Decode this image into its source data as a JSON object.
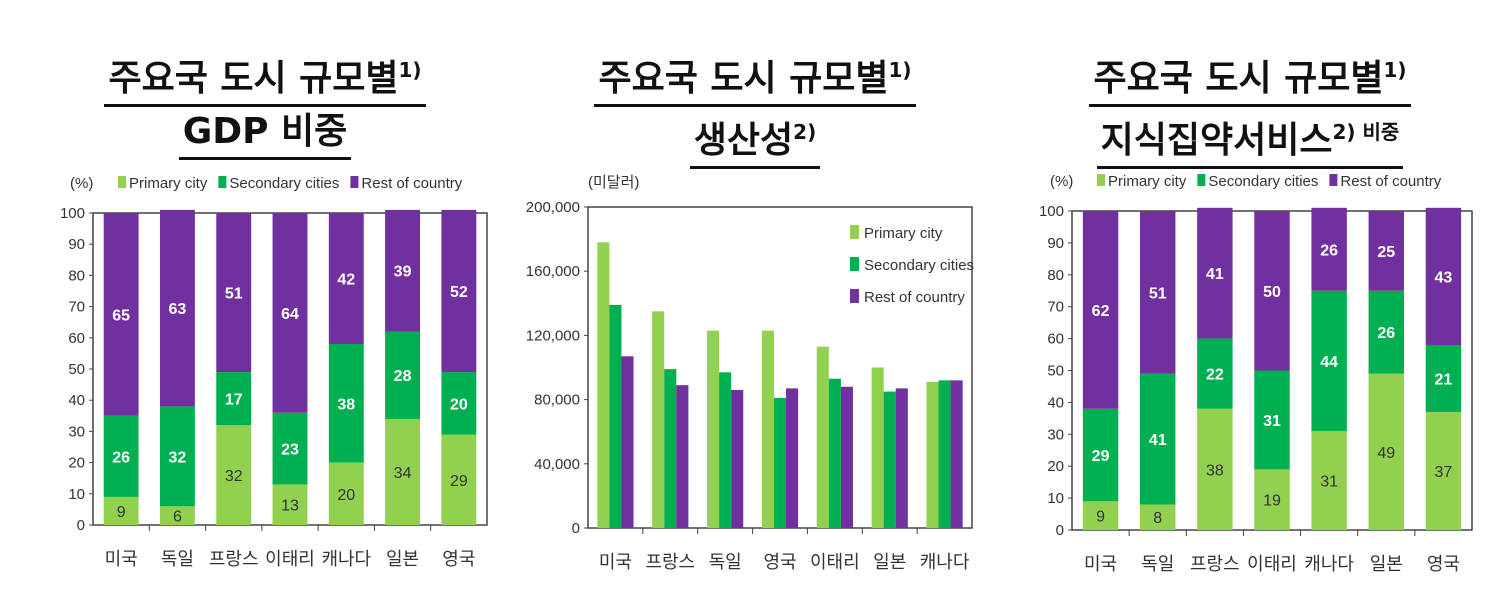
{
  "colors": {
    "primary": "#92d050",
    "secondary": "#00b050",
    "rest": "#7030a0"
  },
  "chart_data": [
    {
      "type": "bar",
      "stacked": true,
      "title_line1": "주요국 도시 규모별",
      "title_line1_sup": "1)",
      "title_line2": "GDP 비중",
      "title_line2_sup": "",
      "ylabel": "(%)",
      "ylim": [
        0,
        100
      ],
      "yticks": [
        0,
        10,
        20,
        30,
        40,
        50,
        60,
        70,
        80,
        90,
        100
      ],
      "legend": "top",
      "categories": [
        "미국",
        "독일",
        "프랑스",
        "이태리",
        "캐나다",
        "일본",
        "영국"
      ],
      "series": [
        {
          "name": "Primary city",
          "values": [
            9,
            6,
            32,
            13,
            20,
            34,
            29
          ]
        },
        {
          "name": "Secondary cities",
          "values": [
            26,
            32,
            17,
            23,
            38,
            28,
            20
          ]
        },
        {
          "name": "Rest of country",
          "values": [
            65,
            63,
            51,
            64,
            42,
            39,
            52
          ]
        }
      ]
    },
    {
      "type": "bar",
      "stacked": false,
      "title_line1": "주요국 도시 규모별",
      "title_line1_sup": "1)",
      "title_line2": "생산성",
      "title_line2_sup": "2)",
      "ylabel": "(미달러)",
      "ylim": [
        0,
        200000
      ],
      "yticks": [
        0,
        40000,
        80000,
        120000,
        160000,
        200000
      ],
      "legend": "top-right",
      "categories": [
        "미국",
        "프랑스",
        "독일",
        "영국",
        "이태리",
        "일본",
        "캐나다"
      ],
      "series": [
        {
          "name": "Primary city",
          "values": [
            178000,
            135000,
            123000,
            123000,
            113000,
            100000,
            91000
          ]
        },
        {
          "name": "Secondary cities",
          "values": [
            139000,
            99000,
            97000,
            81000,
            93000,
            85000,
            92000
          ]
        },
        {
          "name": "Rest of country",
          "values": [
            107000,
            89000,
            86000,
            87000,
            88000,
            87000,
            92000
          ]
        }
      ]
    },
    {
      "type": "bar",
      "stacked": true,
      "title_line1": "주요국 도시 규모별",
      "title_line1_sup": "1)",
      "title_line2": "지식집약서비스",
      "title_line2_sup": "2) 비중",
      "ylabel": "(%)",
      "ylim": [
        0,
        100
      ],
      "yticks": [
        0,
        10,
        20,
        30,
        40,
        50,
        60,
        70,
        80,
        90,
        100
      ],
      "legend": "top",
      "categories": [
        "미국",
        "독일",
        "프랑스",
        "이태리",
        "캐나다",
        "일본",
        "영국"
      ],
      "series": [
        {
          "name": "Primary city",
          "values": [
            9,
            8,
            38,
            19,
            31,
            49,
            37
          ]
        },
        {
          "name": "Secondary cities",
          "values": [
            29,
            41,
            22,
            31,
            44,
            26,
            21
          ]
        },
        {
          "name": "Rest of country",
          "values": [
            62,
            51,
            41,
            50,
            26,
            25,
            43
          ]
        }
      ]
    }
  ]
}
